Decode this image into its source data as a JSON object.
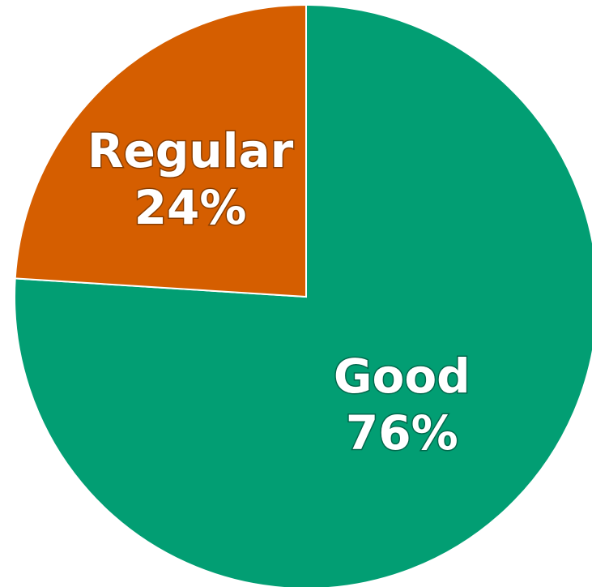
{
  "chart_data": {
    "type": "pie",
    "slices": [
      {
        "label": "Good",
        "value": 76,
        "value_label": "76%",
        "color": "#029e73"
      },
      {
        "label": "Regular",
        "value": 24,
        "value_label": "24%",
        "color": "#d55e00"
      }
    ],
    "start": "top",
    "direction": "clockwise"
  }
}
